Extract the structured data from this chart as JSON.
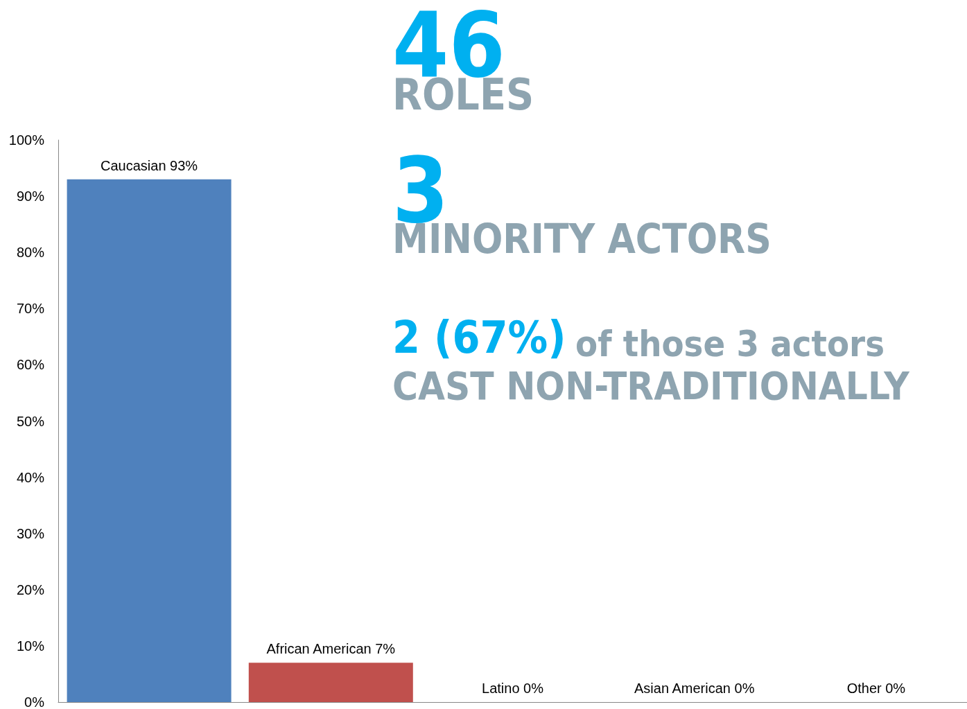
{
  "chart_data": {
    "type": "bar",
    "categories": [
      null,
      null,
      null,
      null,
      null
    ],
    "values": [
      93,
      7,
      0,
      0,
      0
    ],
    "colors": [
      "#4f81bd",
      "#c0504d",
      "#9bbb59",
      "#8064a2",
      "#4bacc6"
    ],
    "value_labels": [
      "Caucasian 93%",
      "African American 7%",
      "Latino 0%",
      "Asian American 0%",
      "Other 0%"
    ],
    "ylim": [
      0,
      100
    ],
    "yticks": [
      {
        "value": 0,
        "label": "0%"
      },
      {
        "value": 10,
        "label": "10%"
      },
      {
        "value": 20,
        "label": "20%"
      },
      {
        "value": 30,
        "label": "30%"
      },
      {
        "value": 40,
        "label": "40%"
      },
      {
        "value": 50,
        "label": "50%"
      },
      {
        "value": 60,
        "label": "60%"
      },
      {
        "value": 70,
        "label": "70%"
      },
      {
        "value": 80,
        "label": "80%"
      },
      {
        "value": 90,
        "label": "90%"
      },
      {
        "value": 100,
        "label": "100%"
      }
    ],
    "grid": false,
    "tick_labels": "y",
    "annotations": [
      "46",
      "ROLES",
      "3",
      "MINORITY ACTORS",
      "2 (67%)",
      "of those 3 actors",
      "CAST NON-TRADITIONALLY"
    ]
  }
}
